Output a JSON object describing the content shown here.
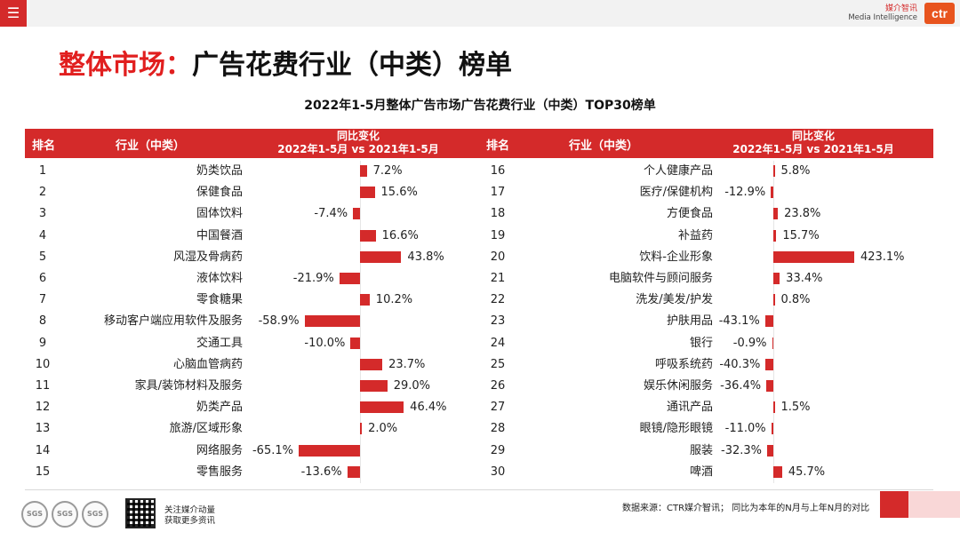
{
  "topbar": {
    "menu_icon": "hamburger-icon",
    "brand_cn": "媒介智讯",
    "brand_en": "Media Intelligence",
    "logo_text": "ctr"
  },
  "title": {
    "highlight": "整体市场：",
    "rest": "广告花费行业（中类）榜单"
  },
  "chart_data": {
    "type": "bar",
    "title": "2022年1-5月整体广告市场广告花费行业（中类）TOP30榜单",
    "headers": {
      "rank": "排名",
      "industry": "行业（中类）",
      "change_line1": "同比变化",
      "change_line2": "2022年1-5月 vs 2021年1-5月"
    },
    "unit": "%",
    "rows": [
      {
        "rank": "1",
        "industry": "奶类饮品",
        "value": 7.2,
        "label": "7.2%"
      },
      {
        "rank": "2",
        "industry": "保健食品",
        "value": 15.6,
        "label": "15.6%"
      },
      {
        "rank": "3",
        "industry": "固体饮料",
        "value": -7.4,
        "label": "-7.4%"
      },
      {
        "rank": "4",
        "industry": "中国餐酒",
        "value": 16.6,
        "label": "16.6%"
      },
      {
        "rank": "5",
        "industry": "风湿及骨病药",
        "value": 43.8,
        "label": "43.8%"
      },
      {
        "rank": "6",
        "industry": "液体饮料",
        "value": -21.9,
        "label": "-21.9%"
      },
      {
        "rank": "7",
        "industry": "零食糖果",
        "value": 10.2,
        "label": "10.2%"
      },
      {
        "rank": "8",
        "industry": "移动客户端应用软件及服务",
        "value": -58.9,
        "label": "-58.9%"
      },
      {
        "rank": "9",
        "industry": "交通工具",
        "value": -10.0,
        "label": "-10.0%"
      },
      {
        "rank": "10",
        "industry": "心脑血管病药",
        "value": 23.7,
        "label": "23.7%"
      },
      {
        "rank": "11",
        "industry": "家具/装饰材料及服务",
        "value": 29.0,
        "label": "29.0%"
      },
      {
        "rank": "12",
        "industry": "奶类产品",
        "value": 46.4,
        "label": "46.4%"
      },
      {
        "rank": "13",
        "industry": "旅游/区域形象",
        "value": 2.0,
        "label": "2.0%"
      },
      {
        "rank": "14",
        "industry": "网络服务",
        "value": -65.1,
        "label": "-65.1%"
      },
      {
        "rank": "15",
        "industry": "零售服务",
        "value": -13.6,
        "label": "-13.6%"
      },
      {
        "rank": "16",
        "industry": "个人健康产品",
        "value": 5.8,
        "label": "5.8%"
      },
      {
        "rank": "17",
        "industry": "医疗/保健机构",
        "value": -12.9,
        "label": "-12.9%"
      },
      {
        "rank": "18",
        "industry": "方便食品",
        "value": 23.8,
        "label": "23.8%"
      },
      {
        "rank": "19",
        "industry": "补益药",
        "value": 15.7,
        "label": "15.7%"
      },
      {
        "rank": "20",
        "industry": "饮料-企业形象",
        "value": 423.1,
        "label": "423.1%"
      },
      {
        "rank": "21",
        "industry": "电脑软件与顾问服务",
        "value": 33.4,
        "label": "33.4%"
      },
      {
        "rank": "22",
        "industry": "洗发/美发/护发",
        "value": 0.8,
        "label": "0.8%"
      },
      {
        "rank": "23",
        "industry": "护肤用品",
        "value": -43.1,
        "label": "-43.1%"
      },
      {
        "rank": "24",
        "industry": "银行",
        "value": -0.9,
        "label": "-0.9%"
      },
      {
        "rank": "25",
        "industry": "呼吸系统药",
        "value": -40.3,
        "label": "-40.3%"
      },
      {
        "rank": "26",
        "industry": "娱乐休闲服务",
        "value": -36.4,
        "label": "-36.4%"
      },
      {
        "rank": "27",
        "industry": "通讯产品",
        "value": 1.5,
        "label": "1.5%"
      },
      {
        "rank": "28",
        "industry": "眼镜/隐形眼镜",
        "value": -11.0,
        "label": "-11.0%"
      },
      {
        "rank": "29",
        "industry": "服装",
        "value": -32.3,
        "label": "-32.3%"
      },
      {
        "rank": "30",
        "industry": "啤酒",
        "value": 45.7,
        "label": "45.7%"
      }
    ]
  },
  "footer": {
    "source_note": "数据来源：CTR媒介智讯；  同比为本年的N月与上年N月的对比",
    "qr_line1": "关注媒介动量",
    "qr_line2": "获取更多资讯",
    "cert_labels": [
      "SGS",
      "SGS",
      "SGS"
    ]
  },
  "colors": {
    "accent": "#d42a2a",
    "title_highlight": "#e11f1f"
  }
}
